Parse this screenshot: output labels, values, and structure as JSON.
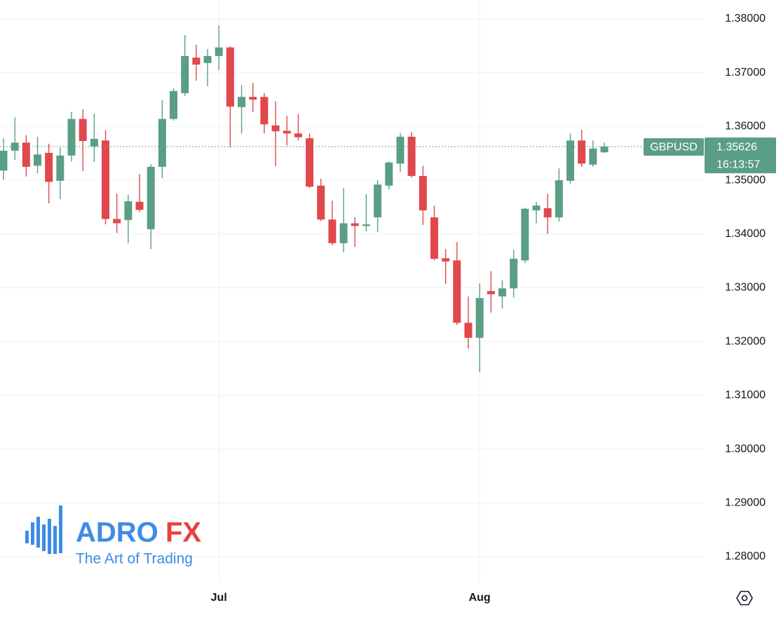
{
  "chart_data": {
    "type": "candlestick",
    "symbol": "GBPUSD",
    "last_price": 1.35626,
    "countdown": "16:13:57",
    "categories": [
      null,
      null,
      null,
      null,
      null,
      null,
      null,
      null,
      null,
      null,
      null,
      null,
      null,
      null,
      null,
      null,
      null,
      null,
      null,
      "Jul",
      null,
      null,
      null,
      null,
      null,
      null,
      null,
      null,
      null,
      null,
      null,
      null,
      null,
      null,
      null,
      null,
      null,
      null,
      null,
      null,
      null,
      null,
      "Aug",
      null,
      null,
      null,
      null,
      null,
      null,
      null,
      null,
      null,
      null,
      null
    ],
    "open": [
      1.3518,
      1.3555,
      1.357,
      1.3527,
      1.3551,
      1.3499,
      1.3546,
      1.3614,
      1.3563,
      1.3574,
      1.3428,
      1.3426,
      1.346,
      1.3409,
      1.3525,
      1.3614,
      1.3662,
      1.3728,
      1.3718,
      1.3731,
      1.3747,
      1.3636,
      1.3655,
      1.3655,
      1.3602,
      1.3592,
      1.3587,
      1.3578,
      1.349,
      1.3427,
      1.3383,
      1.342,
      1.3415,
      1.3431,
      1.349,
      1.3531,
      1.3581,
      1.3508,
      1.3431,
      1.3355,
      1.3351,
      1.3235,
      1.3207,
      1.3294,
      1.3284,
      1.3299,
      1.3351,
      1.3444,
      1.3448,
      1.3431,
      1.3499,
      1.3574,
      1.3529,
      1.3552
    ],
    "high": [
      1.3578,
      1.3617,
      1.3584,
      1.3581,
      1.3568,
      1.3561,
      1.3627,
      1.3632,
      1.3624,
      1.3593,
      1.3475,
      1.3473,
      1.3512,
      1.353,
      1.3649,
      1.3671,
      1.377,
      1.3752,
      1.3744,
      1.3788,
      1.3749,
      1.3677,
      1.3681,
      1.3662,
      1.3647,
      1.362,
      1.3623,
      1.3587,
      1.3503,
      1.3462,
      1.3486,
      1.3431,
      1.3474,
      1.35,
      1.3535,
      1.3588,
      1.359,
      1.3527,
      1.3453,
      1.3372,
      1.3385,
      1.3284,
      1.3308,
      1.3331,
      1.3314,
      1.3371,
      1.3449,
      1.346,
      1.3475,
      1.3522,
      1.3587,
      1.3594,
      1.3574,
      1.357
    ],
    "low": [
      1.3501,
      1.3538,
      1.3507,
      1.3513,
      1.3457,
      1.3465,
      1.3535,
      1.3517,
      1.3534,
      1.3418,
      1.3402,
      1.3383,
      1.3441,
      1.3372,
      1.3504,
      1.3611,
      1.3657,
      1.3685,
      1.3675,
      1.3705,
      1.3561,
      1.3587,
      1.3627,
      1.3587,
      1.3526,
      1.3565,
      1.3574,
      1.3486,
      1.3424,
      1.3379,
      1.3366,
      1.3376,
      1.3405,
      1.3404,
      1.3483,
      1.3516,
      1.3505,
      1.3417,
      1.3351,
      1.3307,
      1.3231,
      1.3187,
      1.3143,
      1.3254,
      1.3261,
      1.3282,
      1.3346,
      1.342,
      1.34,
      1.3423,
      1.3494,
      1.3525,
      1.3525,
      1.3551
    ],
    "close": [
      1.3555,
      1.357,
      1.3525,
      1.3548,
      1.3497,
      1.3546,
      1.3614,
      1.3573,
      1.3577,
      1.3428,
      1.342,
      1.3461,
      1.3445,
      1.3525,
      1.3614,
      1.3666,
      1.3731,
      1.3715,
      1.3731,
      1.3747,
      1.3637,
      1.3655,
      1.365,
      1.3604,
      1.3591,
      1.3587,
      1.358,
      1.3488,
      1.3427,
      1.3383,
      1.342,
      1.3415,
      1.3418,
      1.3492,
      1.3533,
      1.3581,
      1.3508,
      1.3444,
      1.3354,
      1.3349,
      1.3235,
      1.3207,
      1.3281,
      1.3288,
      1.3299,
      1.3354,
      1.3447,
      1.3453,
      1.3431,
      1.35,
      1.3574,
      1.3531,
      1.3559,
      1.35626
    ],
    "up_color": "#5a9e85",
    "down_color": "#e0484b",
    "ylim": [
      1.27531,
      1.38352
    ],
    "yticks": [
      {
        "value": 1.28,
        "label": "1.28000"
      },
      {
        "value": 1.29,
        "label": "1.29000"
      },
      {
        "value": 1.3,
        "label": "1.30000"
      },
      {
        "value": 1.31,
        "label": "1.31000"
      },
      {
        "value": 1.32,
        "label": "1.32000"
      },
      {
        "value": 1.33,
        "label": "1.33000"
      },
      {
        "value": 1.34,
        "label": "1.34000"
      },
      {
        "value": 1.35,
        "label": "1.35000"
      },
      {
        "value": 1.36,
        "label": "1.36000"
      },
      {
        "value": 1.37,
        "label": "1.37000"
      },
      {
        "value": 1.38,
        "label": "1.38000"
      }
    ],
    "grid": true
  },
  "watermark": {
    "brand_1": "ADRO",
    "brand_2": "FX",
    "tagline": "The Art of Trading"
  }
}
